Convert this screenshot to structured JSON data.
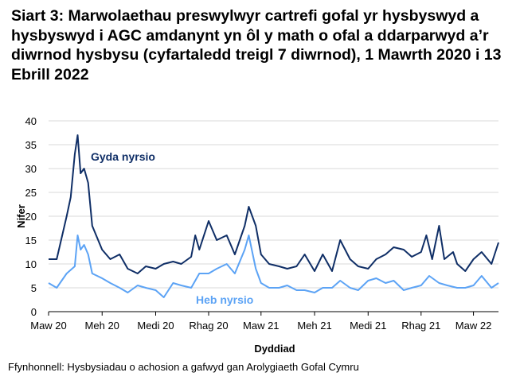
{
  "chart_data": {
    "type": "line",
    "title": "Siart 3: Marwolaethau preswylwyr cartrefi gofal yr hysbyswyd a hysbyswyd i AGC amdanynt yn ôl y math o ofal a ddarparwyd a’r diwrnod hysbysu (cyfartaledd treigl 7 diwrnod), 1 Mawrth 2020 i 13 Ebrill 2022",
    "xlabel": "Dyddiad",
    "ylabel": "Nifer",
    "ylim": [
      0,
      40
    ],
    "yticks": [
      "0",
      "5",
      "10",
      "15",
      "20",
      "25",
      "30",
      "35",
      "40"
    ],
    "xlim": [
      "2020-03-01",
      "2022-04-13"
    ],
    "xticks": [
      {
        "date": "2020-03-01",
        "label": "Maw 20"
      },
      {
        "date": "2020-06-01",
        "label": "Meh 20"
      },
      {
        "date": "2020-09-01",
        "label": "Medi 20"
      },
      {
        "date": "2020-12-01",
        "label": "Rhag 20"
      },
      {
        "date": "2021-03-01",
        "label": "Maw 21"
      },
      {
        "date": "2021-06-01",
        "label": "Meh 21"
      },
      {
        "date": "2021-09-01",
        "label": "Medi 21"
      },
      {
        "date": "2021-12-01",
        "label": "Rhag 21"
      },
      {
        "date": "2022-03-01",
        "label": "Maw 22"
      }
    ],
    "grid": true,
    "series": [
      {
        "name": "Gyda nyrsio",
        "color": "#0f2e66",
        "points": [
          [
            "2020-03-01",
            11
          ],
          [
            "2020-03-15",
            11
          ],
          [
            "2020-04-01",
            20
          ],
          [
            "2020-04-08",
            24
          ],
          [
            "2020-04-15",
            33
          ],
          [
            "2020-04-20",
            37
          ],
          [
            "2020-04-25",
            29
          ],
          [
            "2020-05-01",
            30
          ],
          [
            "2020-05-08",
            27
          ],
          [
            "2020-05-15",
            18
          ],
          [
            "2020-06-01",
            13
          ],
          [
            "2020-06-15",
            11
          ],
          [
            "2020-07-01",
            12
          ],
          [
            "2020-07-15",
            9
          ],
          [
            "2020-08-01",
            8
          ],
          [
            "2020-08-15",
            9.5
          ],
          [
            "2020-09-01",
            9
          ],
          [
            "2020-09-15",
            10
          ],
          [
            "2020-10-01",
            10.5
          ],
          [
            "2020-10-15",
            10
          ],
          [
            "2020-11-01",
            11.5
          ],
          [
            "2020-11-08",
            16
          ],
          [
            "2020-11-15",
            13
          ],
          [
            "2020-12-01",
            19
          ],
          [
            "2020-12-15",
            15
          ],
          [
            "2021-01-01",
            16
          ],
          [
            "2021-01-15",
            12
          ],
          [
            "2021-02-01",
            18
          ],
          [
            "2021-02-08",
            22
          ],
          [
            "2021-02-20",
            18
          ],
          [
            "2021-03-01",
            12
          ],
          [
            "2021-03-15",
            10
          ],
          [
            "2021-04-01",
            9.5
          ],
          [
            "2021-04-15",
            9
          ],
          [
            "2021-05-01",
            9.5
          ],
          [
            "2021-05-15",
            12
          ],
          [
            "2021-06-01",
            8.5
          ],
          [
            "2021-06-15",
            12
          ],
          [
            "2021-07-01",
            8.5
          ],
          [
            "2021-07-15",
            15
          ],
          [
            "2021-08-01",
            11
          ],
          [
            "2021-08-15",
            9.5
          ],
          [
            "2021-09-01",
            9
          ],
          [
            "2021-09-15",
            11
          ],
          [
            "2021-10-01",
            12
          ],
          [
            "2021-10-15",
            13.5
          ],
          [
            "2021-11-01",
            13
          ],
          [
            "2021-11-15",
            11.5
          ],
          [
            "2021-12-01",
            12.5
          ],
          [
            "2021-12-10",
            16
          ],
          [
            "2021-12-20",
            11
          ],
          [
            "2022-01-01",
            18
          ],
          [
            "2022-01-10",
            11
          ],
          [
            "2022-01-25",
            12.5
          ],
          [
            "2022-02-01",
            10
          ],
          [
            "2022-02-15",
            8.5
          ],
          [
            "2022-03-01",
            11
          ],
          [
            "2022-03-15",
            12.5
          ],
          [
            "2022-04-01",
            10
          ],
          [
            "2022-04-13",
            14.5
          ]
        ]
      },
      {
        "name": "Heb nyrsio",
        "color": "#5ca3f5",
        "points": [
          [
            "2020-03-01",
            6
          ],
          [
            "2020-03-15",
            5
          ],
          [
            "2020-04-01",
            8
          ],
          [
            "2020-04-15",
            9.5
          ],
          [
            "2020-04-20",
            16
          ],
          [
            "2020-04-25",
            13
          ],
          [
            "2020-05-01",
            14
          ],
          [
            "2020-05-08",
            12
          ],
          [
            "2020-05-15",
            8
          ],
          [
            "2020-06-01",
            7
          ],
          [
            "2020-06-15",
            6
          ],
          [
            "2020-07-01",
            5
          ],
          [
            "2020-07-15",
            4
          ],
          [
            "2020-08-01",
            5.5
          ],
          [
            "2020-08-15",
            5
          ],
          [
            "2020-09-01",
            4.5
          ],
          [
            "2020-09-15",
            3
          ],
          [
            "2020-10-01",
            6
          ],
          [
            "2020-10-15",
            5.5
          ],
          [
            "2020-11-01",
            5
          ],
          [
            "2020-11-15",
            8
          ],
          [
            "2020-12-01",
            8
          ],
          [
            "2020-12-15",
            9
          ],
          [
            "2021-01-01",
            10
          ],
          [
            "2021-01-15",
            8
          ],
          [
            "2021-02-01",
            13
          ],
          [
            "2021-02-08",
            16
          ],
          [
            "2021-02-20",
            9
          ],
          [
            "2021-03-01",
            6
          ],
          [
            "2021-03-15",
            5
          ],
          [
            "2021-04-01",
            5
          ],
          [
            "2021-04-15",
            5.5
          ],
          [
            "2021-05-01",
            4.5
          ],
          [
            "2021-05-15",
            4.5
          ],
          [
            "2021-06-01",
            4
          ],
          [
            "2021-06-15",
            5
          ],
          [
            "2021-07-01",
            5
          ],
          [
            "2021-07-15",
            6.5
          ],
          [
            "2021-08-01",
            5
          ],
          [
            "2021-08-15",
            4.5
          ],
          [
            "2021-09-01",
            6.5
          ],
          [
            "2021-09-15",
            7
          ],
          [
            "2021-10-01",
            6
          ],
          [
            "2021-10-15",
            6.5
          ],
          [
            "2021-11-01",
            4.5
          ],
          [
            "2021-11-15",
            5
          ],
          [
            "2021-12-01",
            5.5
          ],
          [
            "2021-12-15",
            7.5
          ],
          [
            "2022-01-01",
            6
          ],
          [
            "2022-01-15",
            5.5
          ],
          [
            "2022-02-01",
            5
          ],
          [
            "2022-02-15",
            5
          ],
          [
            "2022-03-01",
            5.5
          ],
          [
            "2022-03-15",
            7.5
          ],
          [
            "2022-04-01",
            5
          ],
          [
            "2022-04-13",
            6
          ]
        ]
      }
    ],
    "legend": "inline labels"
  },
  "source": "Ffynhonnell: Hysbysiadau o achosion a gafwyd gan Arolygiaeth Gofal Cymru"
}
